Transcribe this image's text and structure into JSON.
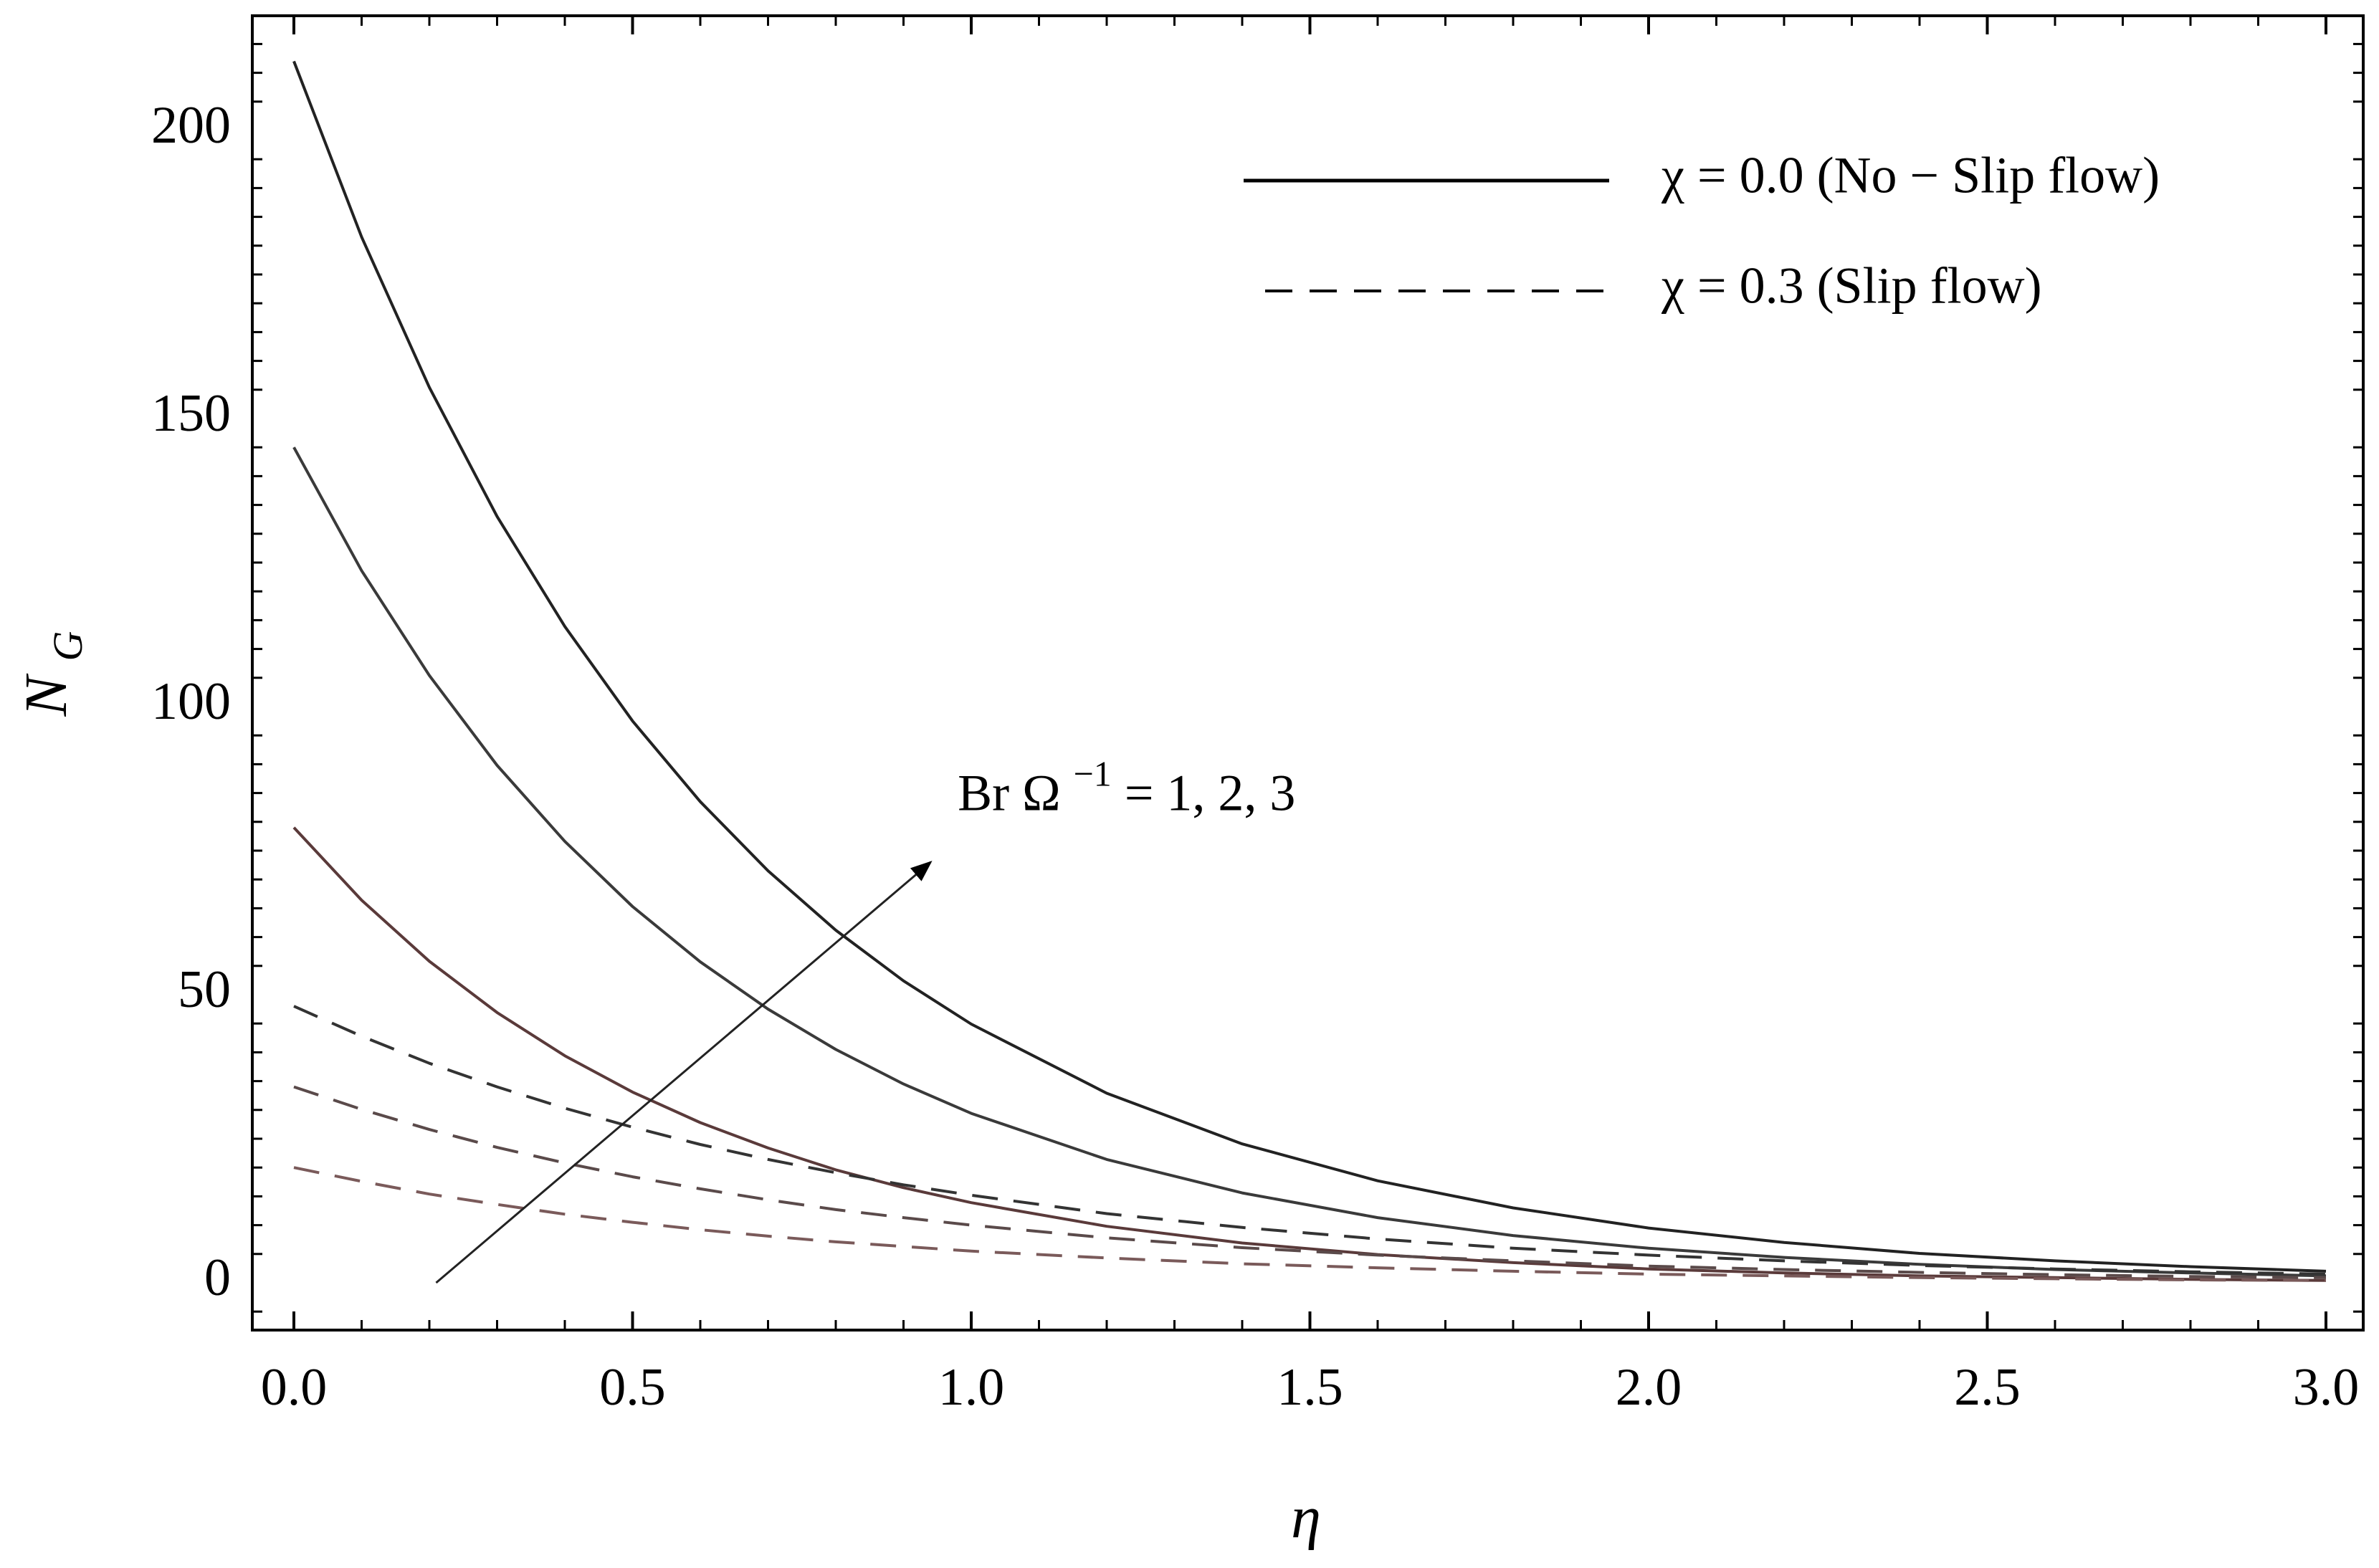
{
  "chart_data": {
    "type": "line",
    "title": "",
    "xlabel": "η",
    "ylabel": "N",
    "ylabel_subscript": "G",
    "xlim": [
      0.0,
      3.0
    ],
    "ylim": [
      -8,
      215
    ],
    "x_ticks": [
      {
        "value": 0.0,
        "label": "0.0"
      },
      {
        "value": 0.5,
        "label": "0.5"
      },
      {
        "value": 1.0,
        "label": "1.0"
      },
      {
        "value": 1.5,
        "label": "1.5"
      },
      {
        "value": 2.0,
        "label": "2.0"
      },
      {
        "value": 2.5,
        "label": "2.5"
      },
      {
        "value": 3.0,
        "label": "3.0"
      }
    ],
    "y_ticks": [
      {
        "value": 0,
        "label": "0"
      },
      {
        "value": 50,
        "label": "50"
      },
      {
        "value": 100,
        "label": "100"
      },
      {
        "value": 150,
        "label": "150"
      },
      {
        "value": 200,
        "label": "200"
      }
    ],
    "grid": false,
    "legend": {
      "position": "top-right",
      "entries": [
        {
          "label": "χ = 0.0 (No − Slip flow)",
          "style": "solid"
        },
        {
          "label": "χ = 0.3 (Slip flow)",
          "style": "dashed"
        }
      ]
    },
    "x": [
      0.0,
      0.1,
      0.2,
      0.3,
      0.4,
      0.5,
      0.6,
      0.7,
      0.8,
      0.9,
      1.0,
      1.2,
      1.4,
      1.6,
      1.8,
      2.0,
      2.2,
      2.4,
      2.6,
      2.8,
      3.0
    ],
    "series": [
      {
        "name": "χ = 0.0, Br Ω⁻¹ = 1",
        "style": "solid",
        "color": "#5a3a3a",
        "values": [
          79,
          66.4,
          55.8,
          46.9,
          39.4,
          33.1,
          27.8,
          23.4,
          19.6,
          16.5,
          13.9,
          9.8,
          6.9,
          4.9,
          3.5,
          2.4,
          1.7,
          1.2,
          0.9,
          0.6,
          0.4
        ]
      },
      {
        "name": "χ = 0.0, Br Ω⁻¹ = 2",
        "style": "solid",
        "color": "#3a3a3a",
        "values": [
          145,
          123.6,
          105.4,
          89.8,
          76.6,
          65.3,
          55.7,
          47.5,
          40.5,
          34.5,
          29.4,
          21.4,
          15.6,
          11.3,
          8.2,
          6.0,
          4.4,
          3.2,
          2.3,
          1.7,
          1.2
        ]
      },
      {
        "name": "χ = 0.0, Br Ω⁻¹ = 3",
        "style": "solid",
        "color": "#222222",
        "values": [
          212,
          181.5,
          155.4,
          133.0,
          113.9,
          97.5,
          83.5,
          71.5,
          61.2,
          52.4,
          44.9,
          32.9,
          24.1,
          17.7,
          13.0,
          9.5,
          7.0,
          5.1,
          3.8,
          2.8,
          2.0
        ]
      },
      {
        "name": "χ = 0.3, Br Ω⁻¹ = 1",
        "style": "dashed",
        "color": "#7a5a5a",
        "values": [
          20,
          17.6,
          15.4,
          13.6,
          11.9,
          10.5,
          9.2,
          8.1,
          7.1,
          6.3,
          5.5,
          4.3,
          3.3,
          2.6,
          2.0,
          1.5,
          1.2,
          0.9,
          0.7,
          0.5,
          0.4
        ]
      },
      {
        "name": "χ = 0.3, Br Ω⁻¹ = 2",
        "style": "dashed",
        "color": "#5a4a4a",
        "values": [
          34,
          30.1,
          26.6,
          23.5,
          20.8,
          18.4,
          16.3,
          14.4,
          12.7,
          11.3,
          10.0,
          7.8,
          6.1,
          4.8,
          3.8,
          2.9,
          2.3,
          1.8,
          1.4,
          1.1,
          0.9
        ]
      },
      {
        "name": "χ = 0.3, Br Ω⁻¹ = 3",
        "style": "dashed",
        "color": "#333333",
        "values": [
          48,
          42.8,
          38.1,
          34.0,
          30.3,
          27.0,
          24.0,
          21.4,
          19.1,
          17.0,
          15.2,
          12.0,
          9.6,
          7.6,
          6.0,
          4.8,
          3.8,
          3.0,
          2.4,
          1.9,
          1.5
        ]
      }
    ],
    "annotation": {
      "text_main": "Br Ω",
      "text_sup": "−1",
      "text_tail": " = 1, 2, 3",
      "arrow_from": {
        "x": 0.21,
        "y": 0
      },
      "arrow_to": {
        "x": 0.94,
        "y": 73
      },
      "text_anchor_point": {
        "x": 0.98,
        "y": 82
      }
    }
  }
}
